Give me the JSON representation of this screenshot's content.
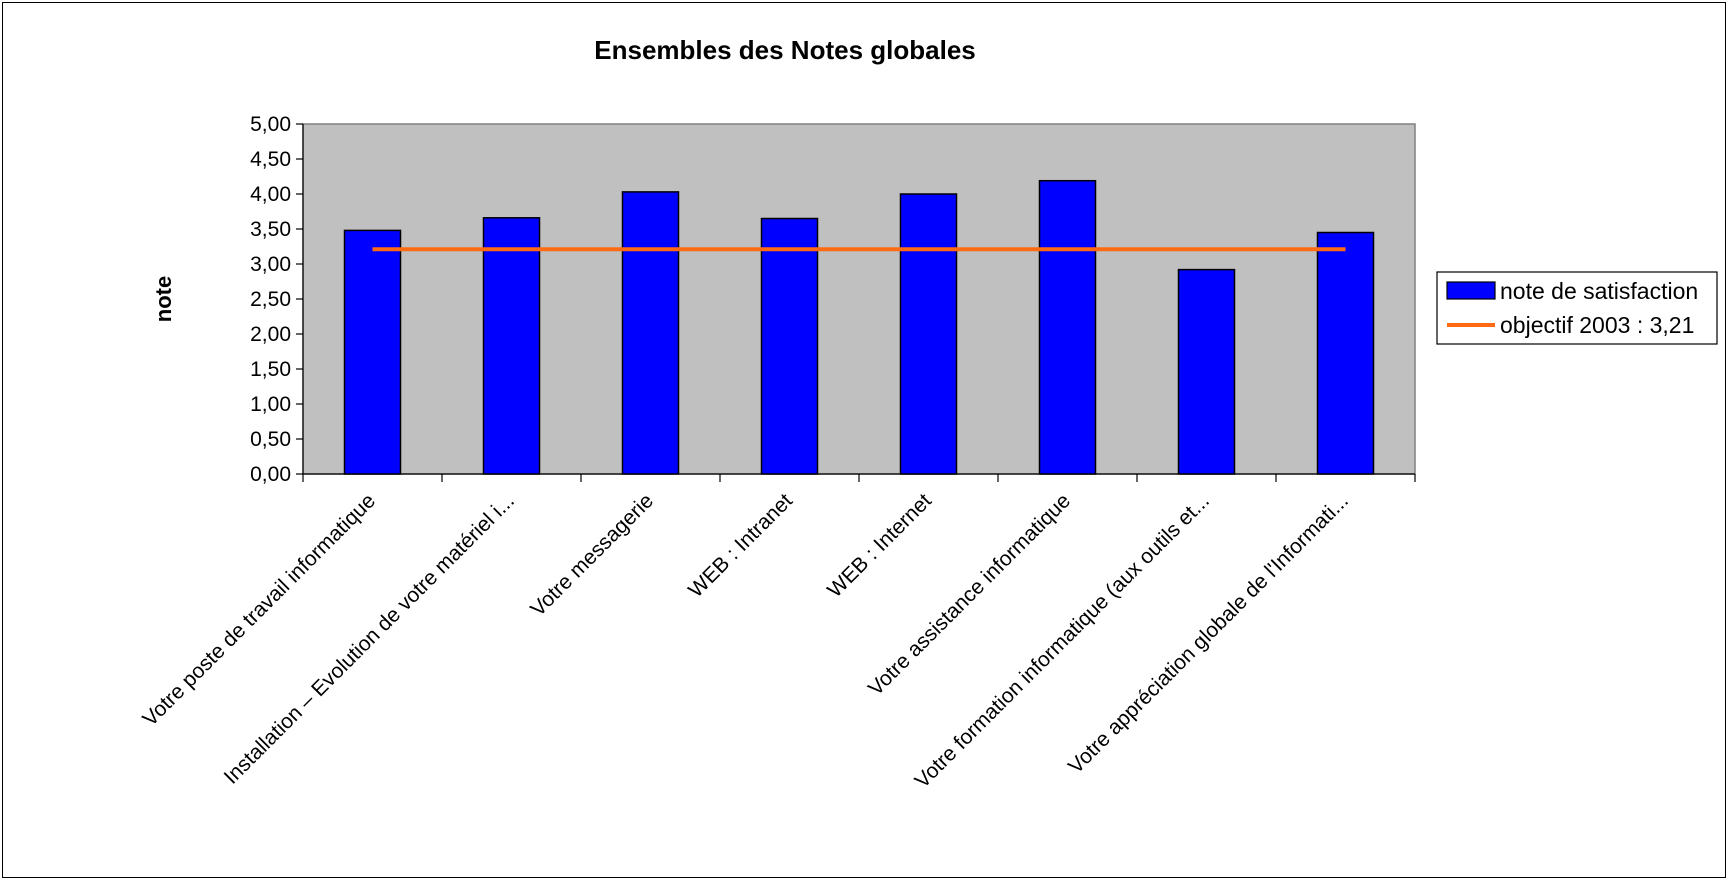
{
  "chart_data": {
    "type": "bar",
    "title": "Ensembles des Notes globales",
    "xlabel": "",
    "ylabel": "note",
    "ylim": [
      0,
      5
    ],
    "ytick_step": 0.5,
    "ytick_labels": [
      "0,00",
      "0,50",
      "1,00",
      "1,50",
      "2,00",
      "2,50",
      "3,00",
      "3,50",
      "4,00",
      "4,50",
      "5,00"
    ],
    "categories": [
      "Votre poste de travail informatique",
      "Installation – Evolution de votre matériel i...",
      "Votre messagerie",
      "WEB : Intranet",
      "WEB : Internet",
      "Votre assistance informatique",
      "Votre formation informatique (aux outils et...",
      "Votre appréciation globale de  l'Informati..."
    ],
    "series": [
      {
        "name": "note de satisfaction",
        "type": "bar",
        "color": "#0000FF",
        "values": [
          3.48,
          3.66,
          4.03,
          3.65,
          4.0,
          4.19,
          2.92,
          3.45
        ]
      },
      {
        "name": "objectif 2003 : 3,21",
        "type": "line",
        "color": "#FF6A13",
        "values": [
          3.21,
          3.21,
          3.21,
          3.21,
          3.21,
          3.21,
          3.21,
          3.21
        ]
      }
    ],
    "plot_background": "#C0C0C0",
    "grid": false,
    "legend_position": "right"
  }
}
